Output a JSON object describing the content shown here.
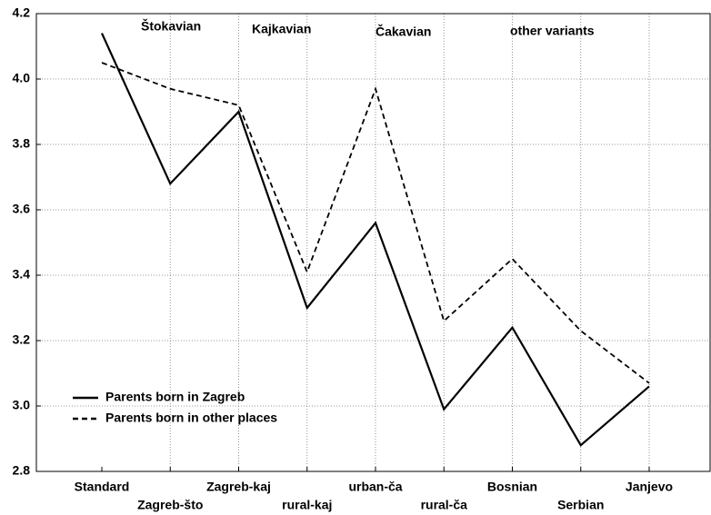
{
  "chart_data": {
    "type": "line",
    "categories": [
      "Standard",
      "Zagreb-što",
      "Zagreb-kaj",
      "rural-kaj",
      "urban-ča",
      "rural-ča",
      "Bosnian",
      "Serbian",
      "Janjevo"
    ],
    "series": [
      {
        "name": "Parents born in Zagreb",
        "color": "#000000",
        "dash": "solid",
        "values": [
          4.14,
          3.68,
          3.9,
          3.3,
          3.56,
          2.99,
          3.24,
          2.88,
          3.06
        ]
      },
      {
        "name": "Parents born in other places",
        "color": "#000000",
        "dash": "dashed",
        "values": [
          4.05,
          3.97,
          3.92,
          3.41,
          3.97,
          3.26,
          3.45,
          3.23,
          3.07
        ]
      }
    ],
    "annotations": [
      "Štokavian",
      "Kajkavian",
      "Čakavian",
      "other variants"
    ],
    "ylim": [
      2.8,
      4.2
    ],
    "yticks": [
      2.8,
      {
        "value": 3,
        "label": "3.0"
      },
      3.2,
      3.4,
      3.6,
      3.8,
      {
        "value": 4,
        "label": "4.0"
      },
      4.2
    ],
    "grid": true,
    "legend": "lower left"
  }
}
